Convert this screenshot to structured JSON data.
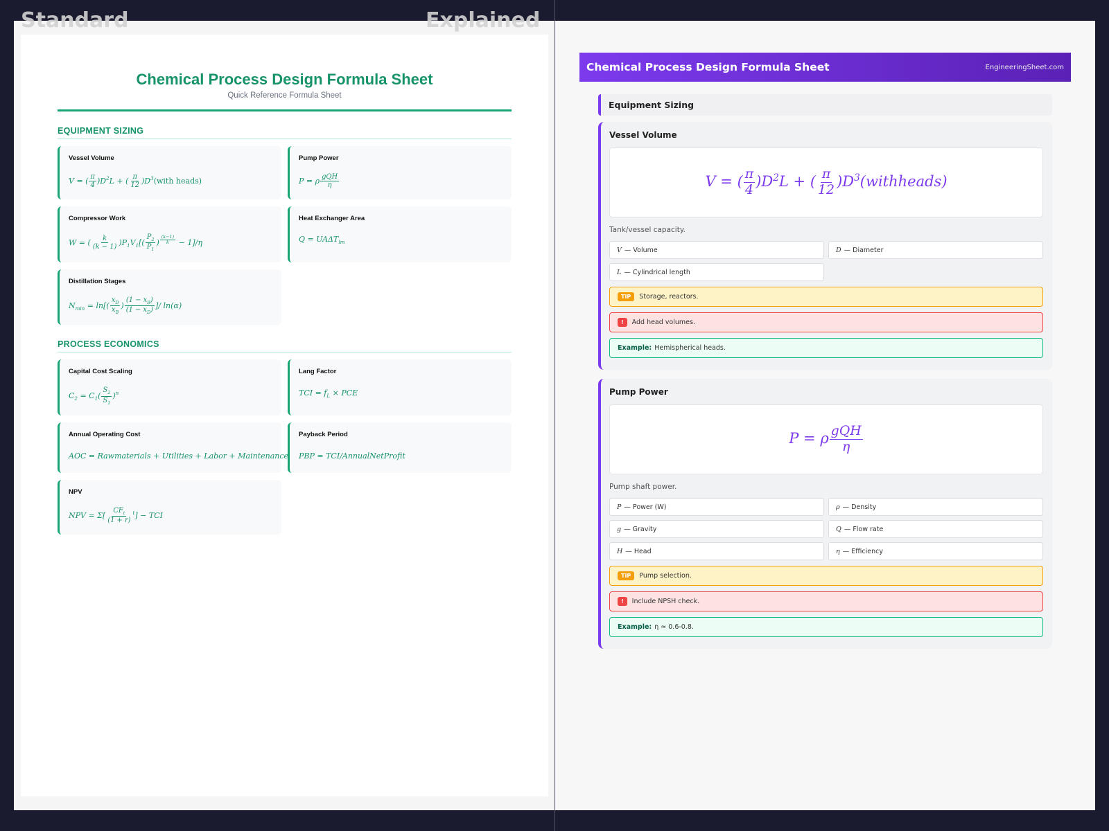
{
  "labels": {
    "standard": "Standard",
    "explained": "Explained"
  },
  "standard": {
    "title": "Chemical Process Design Formula Sheet",
    "subtitle": "Quick Reference Formula Sheet",
    "sections": [
      {
        "heading": "EQUIPMENT SIZING",
        "cards": [
          {
            "name": "Vessel Volume",
            "formula": [
              "V = (",
              {
                "frac": [
                  "π",
                  "4"
                ]
              },
              ")D",
              {
                "sup": "2"
              },
              "L + (",
              {
                "frac": [
                  "π",
                  "12"
                ]
              },
              ")D",
              {
                "sup": "3"
              },
              {
                "rm": "(with heads)"
              }
            ]
          },
          {
            "name": "Pump Power",
            "formula": [
              "P = ρ",
              {
                "frac": [
                  "gQH",
                  "η"
                ]
              }
            ]
          },
          {
            "name": "Compressor Work",
            "formula": [
              "W = (",
              {
                "frac": [
                  "k",
                  "(k − 1)"
                ]
              },
              ")P",
              {
                "sub": "1"
              },
              "V",
              {
                "sub": "1"
              },
              "[(",
              {
                "frac": [
                  [
                    "P",
                    {
                      "sub": "2"
                    }
                  ],
                  [
                    "P",
                    {
                      "sub": "1"
                    }
                  ]
                ]
              },
              ")",
              {
                "sup": [
                  {
                    "frac": [
                      "(k−1)",
                      "k"
                    ]
                  }
                ]
              },
              " − 1]/η"
            ]
          },
          {
            "name": "Heat Exchanger Area",
            "formula": [
              "Q = UAΔT",
              {
                "sub": "lm"
              }
            ]
          },
          {
            "name": "Distillation Stages",
            "formula": [
              "N",
              {
                "sub": "min"
              },
              " = ln[(",
              {
                "frac": [
                  [
                    "x",
                    {
                      "sub": "D"
                    }
                  ],
                  [
                    "x",
                    {
                      "sub": "B"
                    }
                  ]
                ]
              },
              ")",
              {
                "frac": [
                  [
                    "(1 − x",
                    {
                      "sub": "B"
                    },
                    ")"
                  ],
                  [
                    "(1 − x",
                    {
                      "sub": "D"
                    },
                    ")"
                  ]
                ]
              },
              "]/ ln(α)"
            ]
          }
        ]
      },
      {
        "heading": "PROCESS ECONOMICS",
        "cards": [
          {
            "name": "Capital Cost Scaling",
            "formula": [
              "C",
              {
                "sub": "2"
              },
              " = C",
              {
                "sub": "1"
              },
              "(",
              {
                "frac": [
                  [
                    "S",
                    {
                      "sub": "2"
                    }
                  ],
                  [
                    "S",
                    {
                      "sub": "1"
                    }
                  ]
                ]
              },
              ")",
              {
                "sup": "n"
              }
            ]
          },
          {
            "name": "Lang Factor",
            "formula": [
              "TCI = f",
              {
                "sub": "L"
              },
              " × PCE"
            ]
          },
          {
            "name": "Annual Operating Cost",
            "formula": [
              "AOC = Rawmaterials + Utilities + Labor + Maintenance"
            ]
          },
          {
            "name": "Payback Period",
            "formula": [
              "PBP = TCI/AnnualNetProfit"
            ]
          },
          {
            "name": "NPV",
            "formula": [
              "NPV = Σ[",
              {
                "frac": [
                  [
                    "CF",
                    {
                      "sub": "t"
                    }
                  ],
                  "(1 + r)"
                ]
              },
              {
                "sup": "t"
              },
              "] − TCI"
            ]
          }
        ]
      }
    ]
  },
  "explained": {
    "title": "Chemical Process Design Formula Sheet",
    "site": "EngineeringSheet.com",
    "section": "Equipment Sizing",
    "cards": [
      {
        "name": "Vessel Volume",
        "formula": [
          "V = (",
          {
            "frac": [
              "π",
              "4"
            ]
          },
          ")D",
          {
            "sup": "2"
          },
          "L + (",
          {
            "frac": [
              "π",
              "12"
            ]
          },
          ")D",
          {
            "sup": "3"
          },
          "(withheads)"
        ],
        "description": "Tank/vessel capacity.",
        "variables": [
          {
            "symbol": "V",
            "text": "— Volume"
          },
          {
            "symbol": "D",
            "text": "— Diameter"
          },
          {
            "symbol": "L",
            "text": "— Cylindrical length"
          }
        ],
        "tip_badge": "TIP",
        "tip": "Storage, reactors.",
        "warning_badge": "!",
        "warning": "Add head volumes.",
        "example_label": "Example:",
        "example": "Hemispherical heads."
      },
      {
        "name": "Pump Power",
        "formula": [
          "P = ρ",
          {
            "frac": [
              "gQH",
              "η"
            ]
          }
        ],
        "description": "Pump shaft power.",
        "variables": [
          {
            "symbol": "P",
            "text": "— Power (W)"
          },
          {
            "symbol": "ρ",
            "text": "— Density"
          },
          {
            "symbol": "g",
            "text": "— Gravity"
          },
          {
            "symbol": "Q",
            "text": "— Flow rate"
          },
          {
            "symbol": "H",
            "text": "— Head"
          },
          {
            "symbol": "η",
            "text": "— Efficiency"
          }
        ],
        "tip_badge": "TIP",
        "tip": "Pump selection.",
        "warning_badge": "!",
        "warning": "Include NPSH check.",
        "example_label": "Example:",
        "example": "η ≈ 0.6-0.8."
      }
    ]
  }
}
